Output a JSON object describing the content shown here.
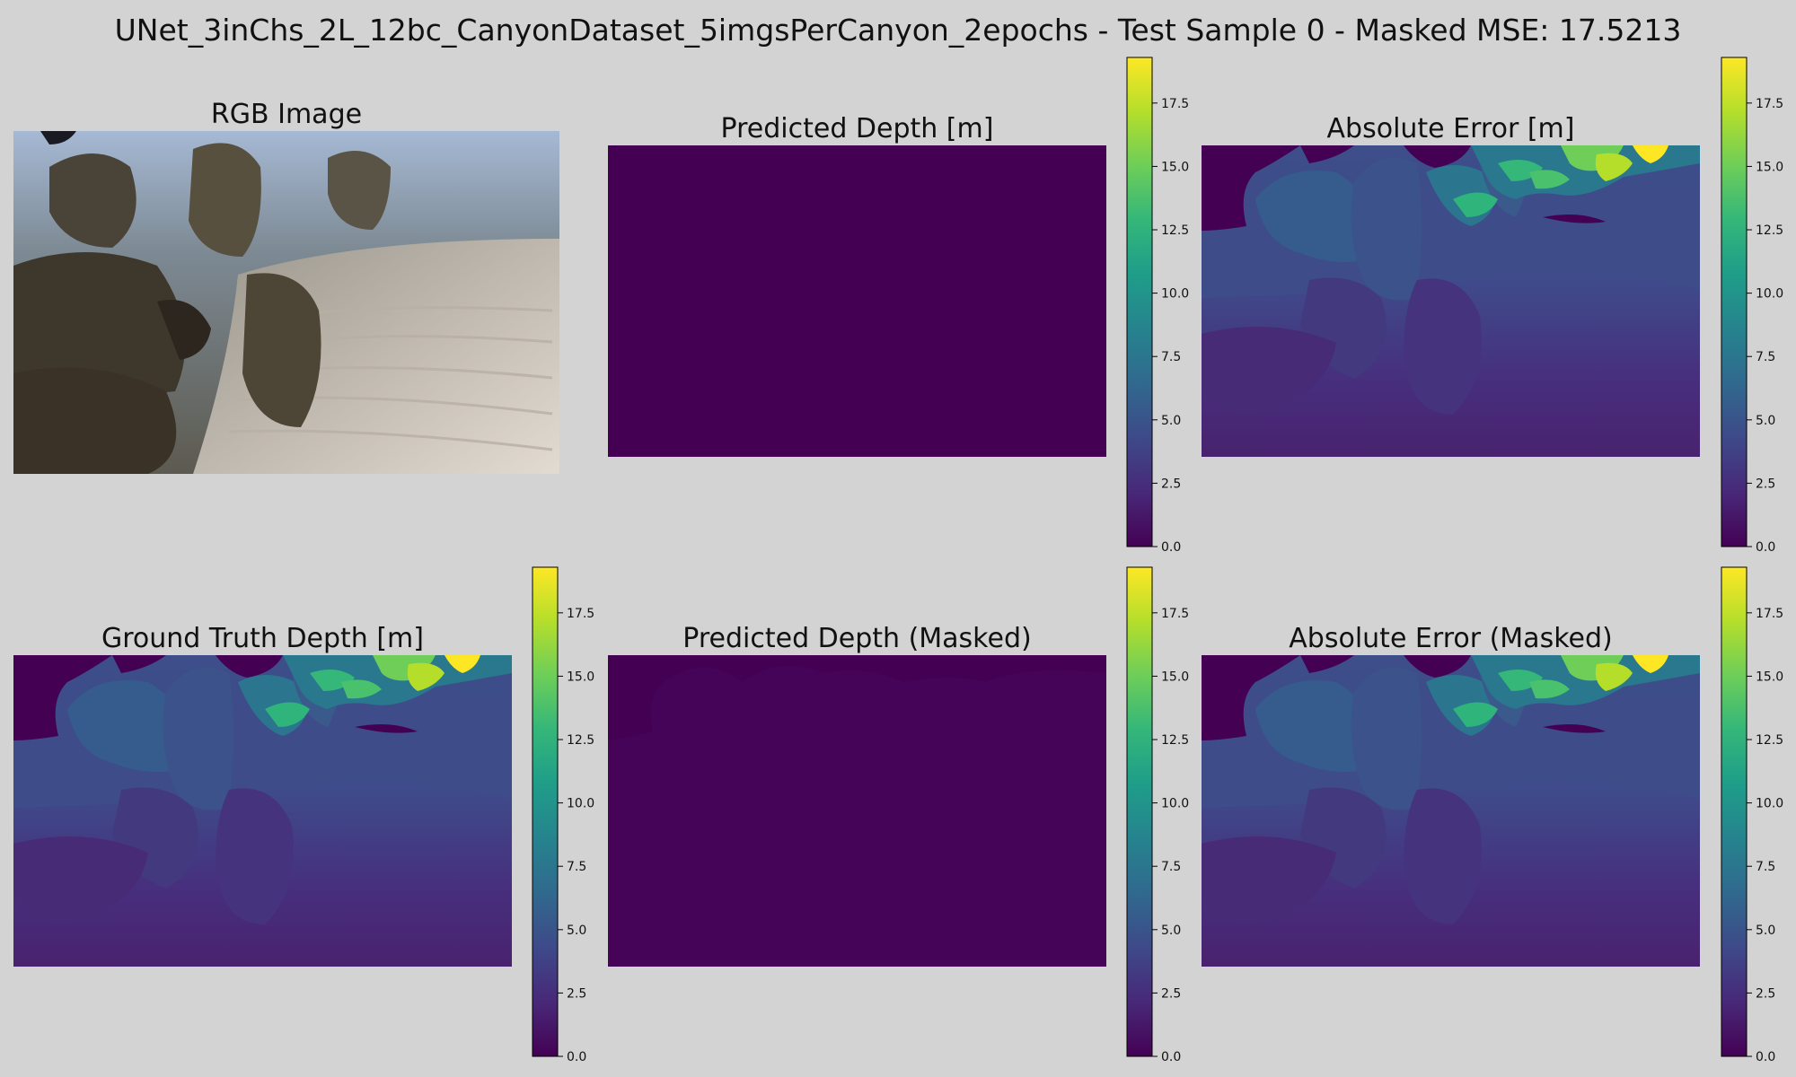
{
  "figure": {
    "suptitle": "UNet_3inChs_2L_12bc_CanyonDataset_5imgsPerCanyon_2epochs - Test Sample 0 - Masked MSE: 17.5213"
  },
  "panels": {
    "rgb": {
      "title": "RGB Image"
    },
    "pred": {
      "title": "Predicted Depth [m]"
    },
    "abs_err": {
      "title": "Absolute Error [m]"
    },
    "gt": {
      "title": "Ground Truth Depth [m]"
    },
    "pred_masked": {
      "title": "Predicted Depth (Masked)"
    },
    "abs_err_masked": {
      "title": "Absolute Error (Masked)"
    }
  },
  "colormap": {
    "name": "viridis",
    "stops": [
      "#440154",
      "#482878",
      "#3e4989",
      "#31688e",
      "#26828e",
      "#1f9e89",
      "#35b779",
      "#6ece58",
      "#b5de2b",
      "#fde725"
    ]
  },
  "chart_data": [
    {
      "type": "heatmap",
      "panel": "pred",
      "title": "Predicted Depth [m]",
      "vmin": 0,
      "vmax": 19.3,
      "colorbar_ticks": [
        0.0,
        2.5,
        5.0,
        7.5,
        10.0,
        12.5,
        15.0,
        17.5
      ],
      "colorbar_tick_labels": [
        "0.0",
        "2.5",
        "5.0",
        "7.5",
        "10.0",
        "12.5",
        "15.0",
        "17.5"
      ]
    },
    {
      "type": "heatmap",
      "panel": "abs_err",
      "title": "Absolute Error [m]",
      "vmin": 0,
      "vmax": 19.3,
      "colorbar_ticks": [
        0.0,
        2.5,
        5.0,
        7.5,
        10.0,
        12.5,
        15.0,
        17.5
      ],
      "colorbar_tick_labels": [
        "0.0",
        "2.5",
        "5.0",
        "7.5",
        "10.0",
        "12.5",
        "15.0",
        "17.5"
      ]
    },
    {
      "type": "heatmap",
      "panel": "gt",
      "title": "Ground Truth Depth [m]",
      "vmin": 0,
      "vmax": 19.3,
      "colorbar_ticks": [
        0.0,
        2.5,
        5.0,
        7.5,
        10.0,
        12.5,
        15.0,
        17.5
      ],
      "colorbar_tick_labels": [
        "0.0",
        "2.5",
        "5.0",
        "7.5",
        "10.0",
        "12.5",
        "15.0",
        "17.5"
      ]
    },
    {
      "type": "heatmap",
      "panel": "pred_masked",
      "title": "Predicted Depth (Masked)",
      "vmin": 0,
      "vmax": 19.3,
      "colorbar_ticks": [
        0.0,
        2.5,
        5.0,
        7.5,
        10.0,
        12.5,
        15.0,
        17.5
      ],
      "colorbar_tick_labels": [
        "0.0",
        "2.5",
        "5.0",
        "7.5",
        "10.0",
        "12.5",
        "15.0",
        "17.5"
      ]
    },
    {
      "type": "heatmap",
      "panel": "abs_err_masked",
      "title": "Absolute Error (Masked)",
      "vmin": 0,
      "vmax": 19.3,
      "colorbar_ticks": [
        0.0,
        2.5,
        5.0,
        7.5,
        10.0,
        12.5,
        15.0,
        17.5
      ],
      "colorbar_tick_labels": [
        "0.0",
        "2.5",
        "5.0",
        "7.5",
        "10.0",
        "12.5",
        "15.0",
        "17.5"
      ]
    }
  ]
}
